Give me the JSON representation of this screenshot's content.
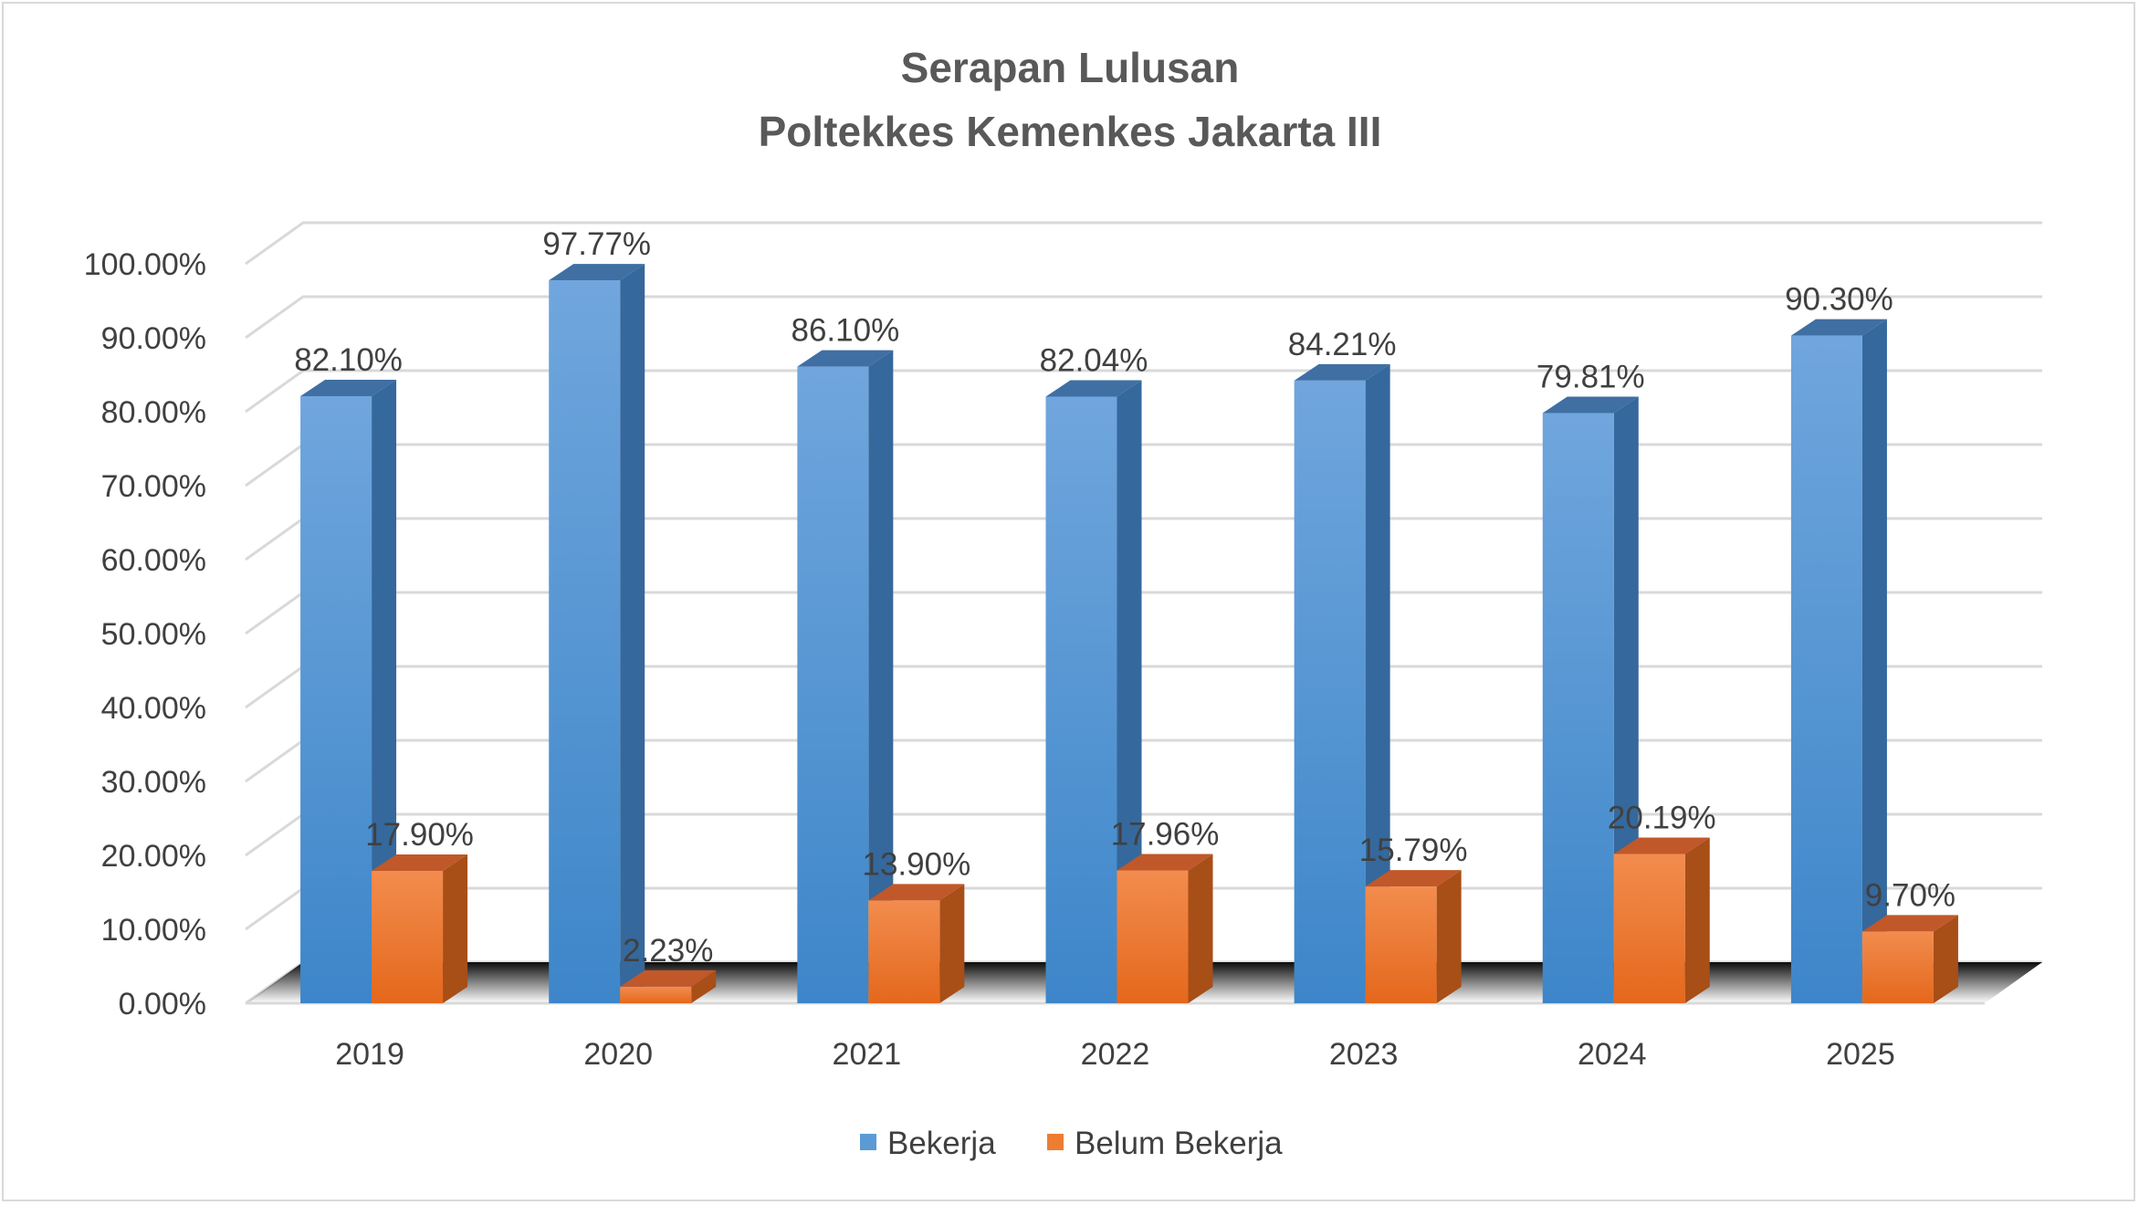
{
  "chart_data": {
    "type": "bar",
    "title": "Serapan Lulusan",
    "subtitle": "Poltekkes Kemenkes Jakarta III",
    "categories": [
      "2019",
      "2020",
      "2021",
      "2022",
      "2023",
      "2024",
      "2025"
    ],
    "series": [
      {
        "name": "Bekerja",
        "color": "#5b9bd5",
        "values": [
          82.1,
          97.77,
          86.1,
          82.04,
          84.21,
          79.81,
          90.3
        ],
        "labels": [
          "82.10%",
          "97.77%",
          "86.10%",
          "82.04%",
          "84.21%",
          "79.81%",
          "90.30%"
        ]
      },
      {
        "name": "Belum Bekerja",
        "color": "#ed7d31",
        "values": [
          17.9,
          2.23,
          13.9,
          17.96,
          15.79,
          20.19,
          9.7
        ],
        "labels": [
          "17.90%",
          "2.23%",
          "13.90%",
          "17.96%",
          "15.79%",
          "20.19%",
          "9.70%"
        ]
      }
    ],
    "y_ticks": [
      "0.00%",
      "10.00%",
      "20.00%",
      "30.00%",
      "40.00%",
      "50.00%",
      "60.00%",
      "70.00%",
      "80.00%",
      "90.00%",
      "100.00%"
    ],
    "ylim": [
      0,
      100
    ],
    "grid": true,
    "legend_position": "bottom",
    "three_d": true
  }
}
